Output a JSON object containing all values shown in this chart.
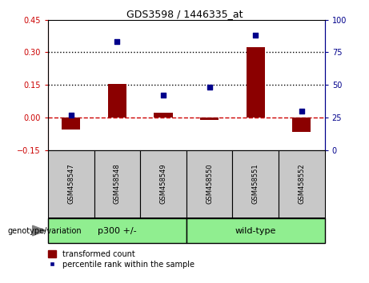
{
  "title": "GDS3598 / 1446335_at",
  "samples": [
    "GSM458547",
    "GSM458548",
    "GSM458549",
    "GSM458550",
    "GSM458551",
    "GSM458552"
  ],
  "transformed_count": [
    -0.055,
    0.155,
    0.02,
    -0.012,
    0.325,
    -0.065
  ],
  "percentile_rank": [
    27,
    83,
    42,
    48,
    88,
    30
  ],
  "bar_color": "#8B0000",
  "dot_color": "#00008B",
  "ylim_left": [
    -0.15,
    0.45
  ],
  "ylim_right": [
    0,
    100
  ],
  "yticks_left": [
    -0.15,
    0.0,
    0.15,
    0.3,
    0.45
  ],
  "yticks_right": [
    0,
    25,
    50,
    75,
    100
  ],
  "hline_y": [
    0.15,
    0.3
  ],
  "hline_color": "black",
  "zero_line_color": "#CC0000",
  "left_axis_color": "#CC0000",
  "right_axis_color": "#00008B",
  "legend_bar_label": "transformed count",
  "legend_dot_label": "percentile rank within the sample",
  "genotype_label": "genotype/variation",
  "group1_label": "p300 +/-",
  "group2_label": "wild-type",
  "group_bg_color": "#90EE90",
  "sample_bg_color": "#C8C8C8",
  "bar_width": 0.4
}
